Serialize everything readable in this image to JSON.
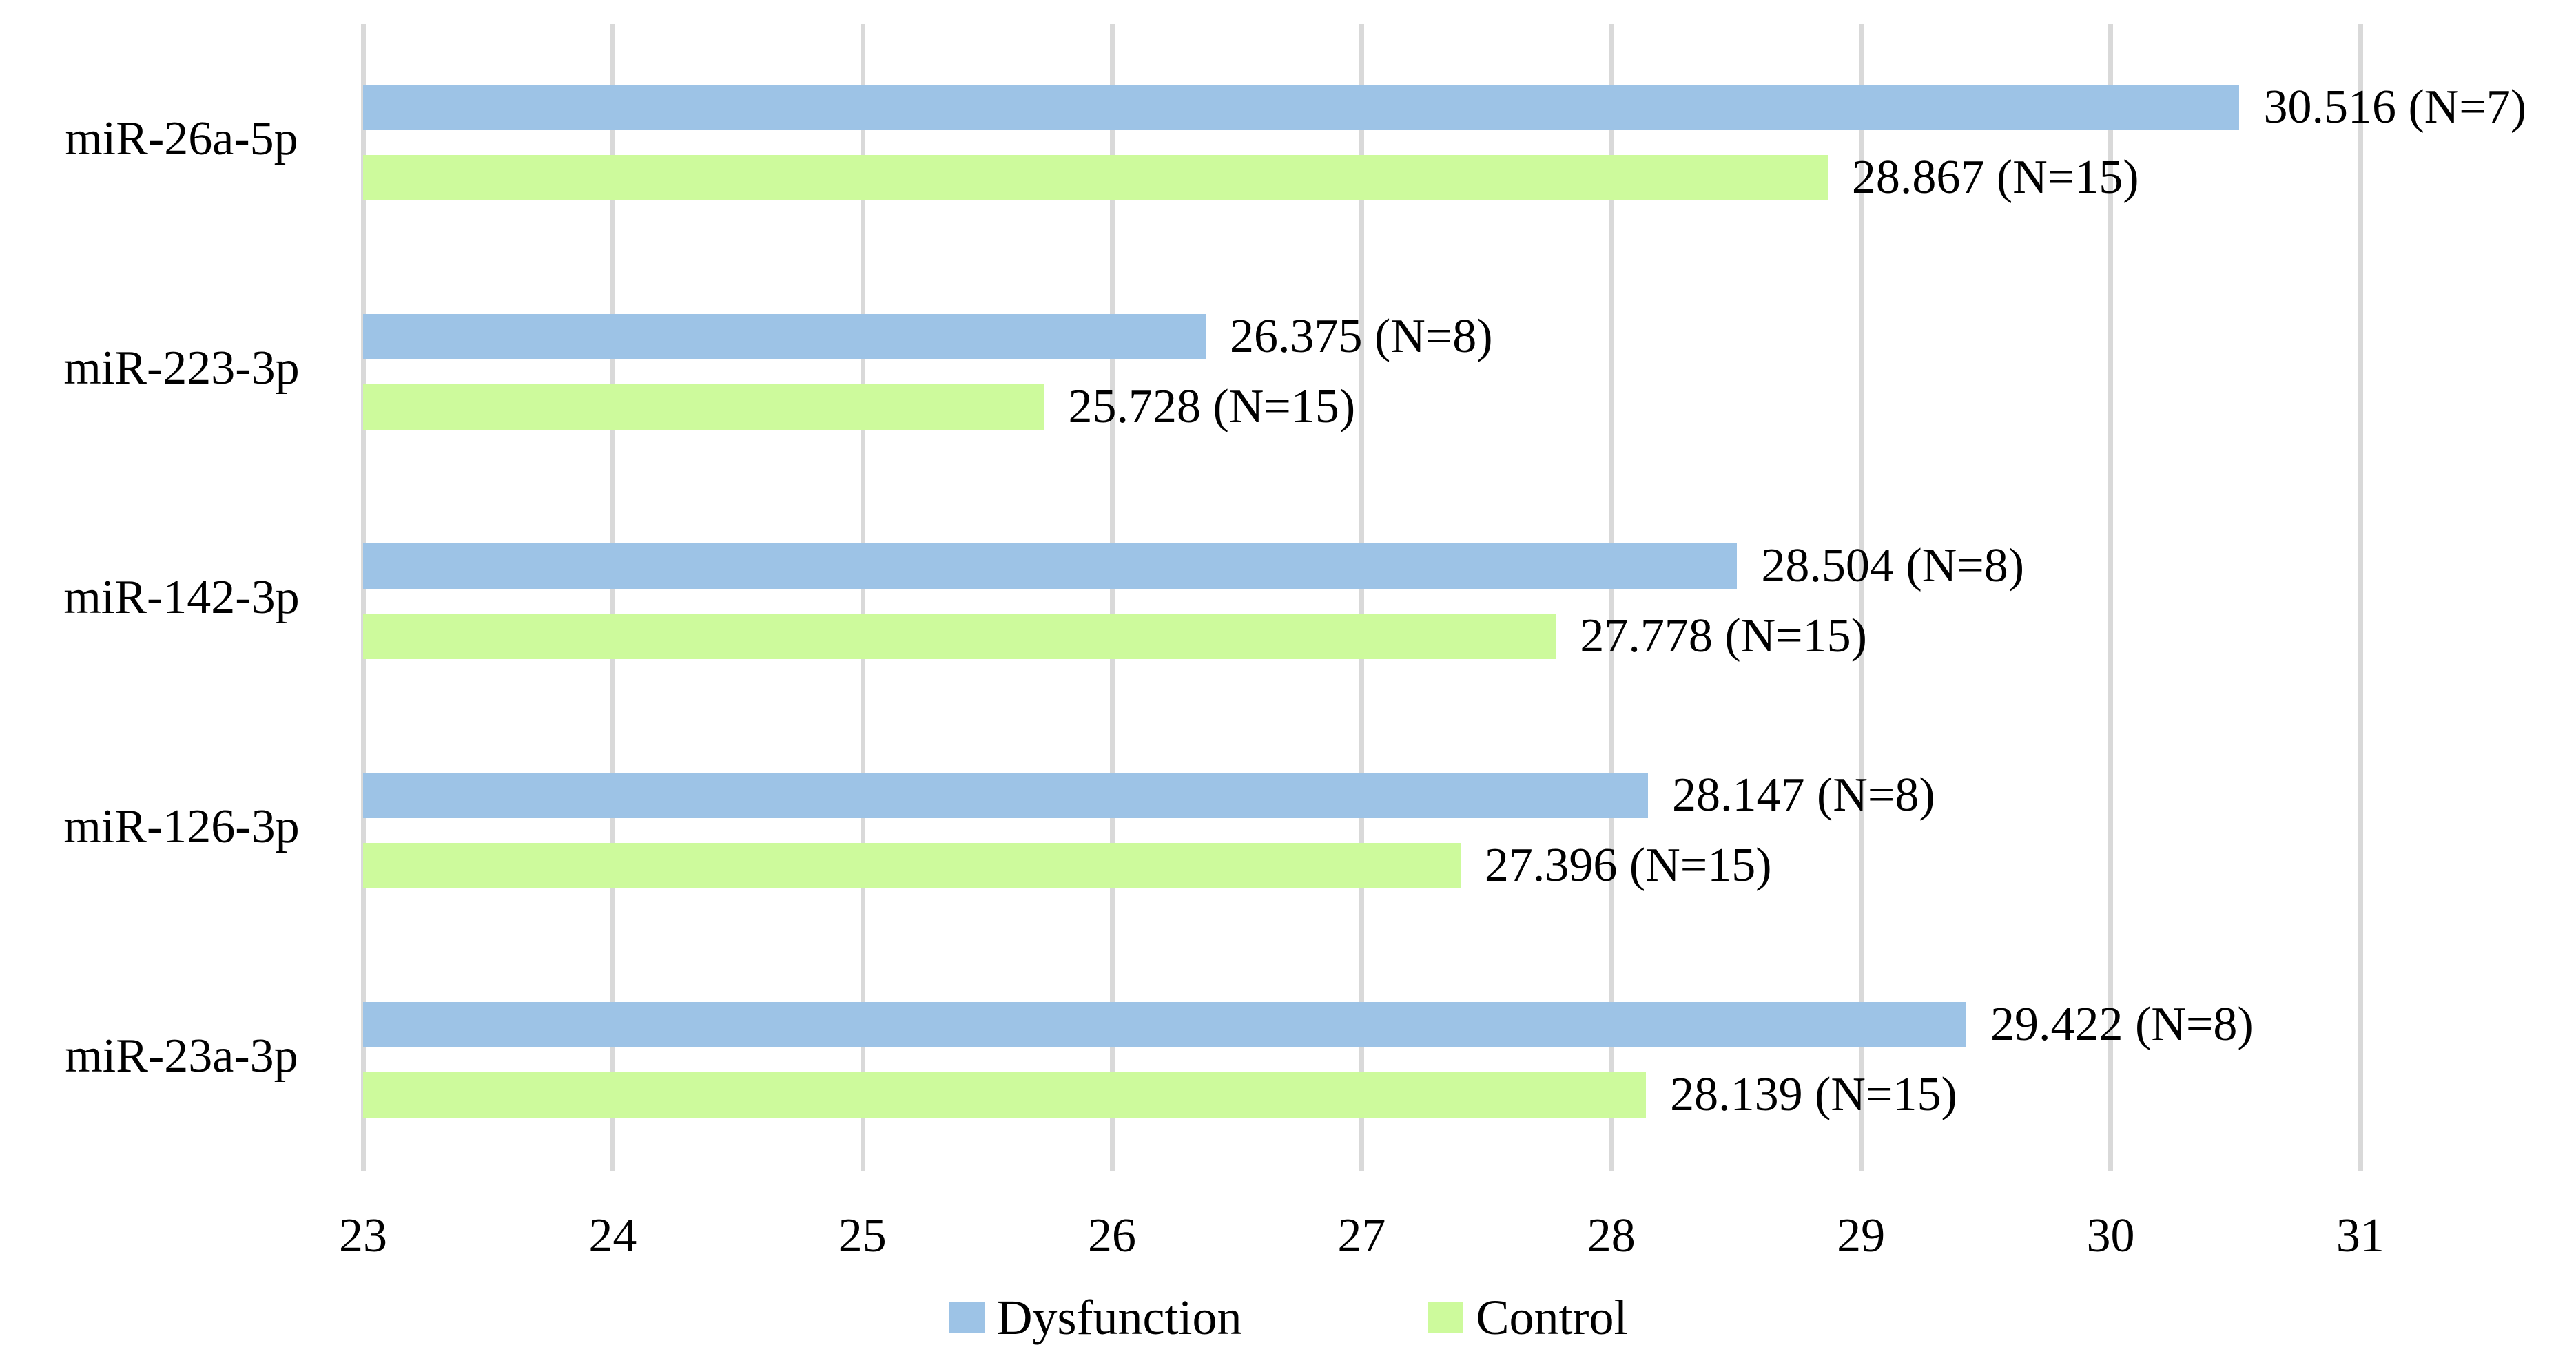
{
  "chart_data": {
    "type": "bar",
    "orientation": "horizontal",
    "title": "",
    "categories": [
      "miR-26a-5p",
      "miR-223-3p",
      "miR-142-3p",
      "miR-126-3p",
      "miR-23a-3p"
    ],
    "series": [
      {
        "name": "Dysfunction",
        "color": "#9DC3E6",
        "values": [
          30.516,
          26.375,
          28.504,
          28.147,
          29.422
        ],
        "n": [
          7,
          8,
          8,
          8,
          8
        ],
        "data_labels": [
          "30.516 (N=7)",
          "26.375 (N=8)",
          "28.504 (N=8)",
          "28.147 (N=8)",
          "29.422 (N=8)"
        ]
      },
      {
        "name": "Control",
        "color": "#CDFA9C",
        "values": [
          28.867,
          25.728,
          27.778,
          27.396,
          28.139
        ],
        "n": [
          15,
          15,
          15,
          15,
          15
        ],
        "data_labels": [
          "28.867 (N=15)",
          "25.728 (N=15)",
          "27.778 (N=15)",
          "27.396 (N=15)",
          "28.139 (N=15)"
        ]
      }
    ],
    "xlim": [
      23,
      31.5
    ],
    "x_ticks": [
      23,
      24,
      25,
      26,
      27,
      28,
      29,
      30,
      31
    ],
    "grid": "vertical-major",
    "gridline_color": "#D9D9D9",
    "background_color": "#FFFFFF",
    "text_color": "#000000",
    "legend_position": "bottom",
    "legend_labels": [
      "Dysfunction",
      "Control"
    ]
  }
}
